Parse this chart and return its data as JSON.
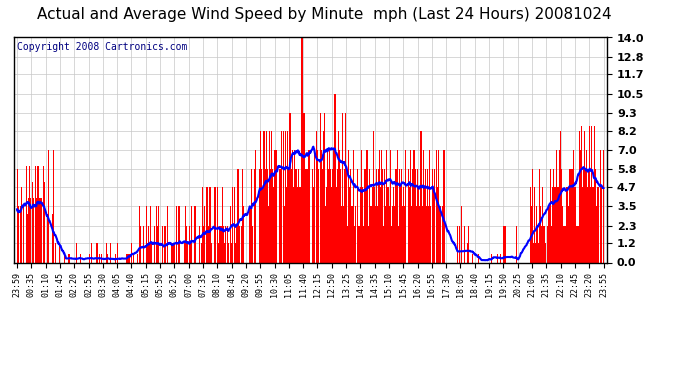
{
  "title": "Actual and Average Wind Speed by Minute  mph (Last 24 Hours) 20081024",
  "copyright_text": "Copyright 2008 Cartronics.com",
  "background_color": "#ffffff",
  "plot_bg_color": "#ffffff",
  "bar_color": "#ff0000",
  "line_color": "#0000ff",
  "grid_color": "#c8c8c8",
  "ylim": [
    0,
    14.0
  ],
  "yticks": [
    0.0,
    1.2,
    2.3,
    3.5,
    4.7,
    5.8,
    7.0,
    8.2,
    9.3,
    10.5,
    11.7,
    12.8,
    14.0
  ],
  "xtick_labels": [
    "23:59",
    "00:35",
    "01:10",
    "01:45",
    "02:20",
    "02:55",
    "03:30",
    "04:05",
    "04:40",
    "05:15",
    "05:50",
    "06:25",
    "07:00",
    "07:35",
    "08:10",
    "08:45",
    "09:20",
    "09:55",
    "10:30",
    "11:05",
    "11:40",
    "12:15",
    "12:50",
    "13:25",
    "14:00",
    "14:35",
    "15:10",
    "15:45",
    "16:20",
    "16:55",
    "17:30",
    "18:05",
    "18:40",
    "19:15",
    "19:50",
    "20:25",
    "21:00",
    "21:35",
    "22:10",
    "22:45",
    "23:20",
    "23:55"
  ],
  "title_fontsize": 11,
  "copyright_fontsize": 7,
  "ytick_fontsize": 8,
  "xtick_fontsize": 6
}
